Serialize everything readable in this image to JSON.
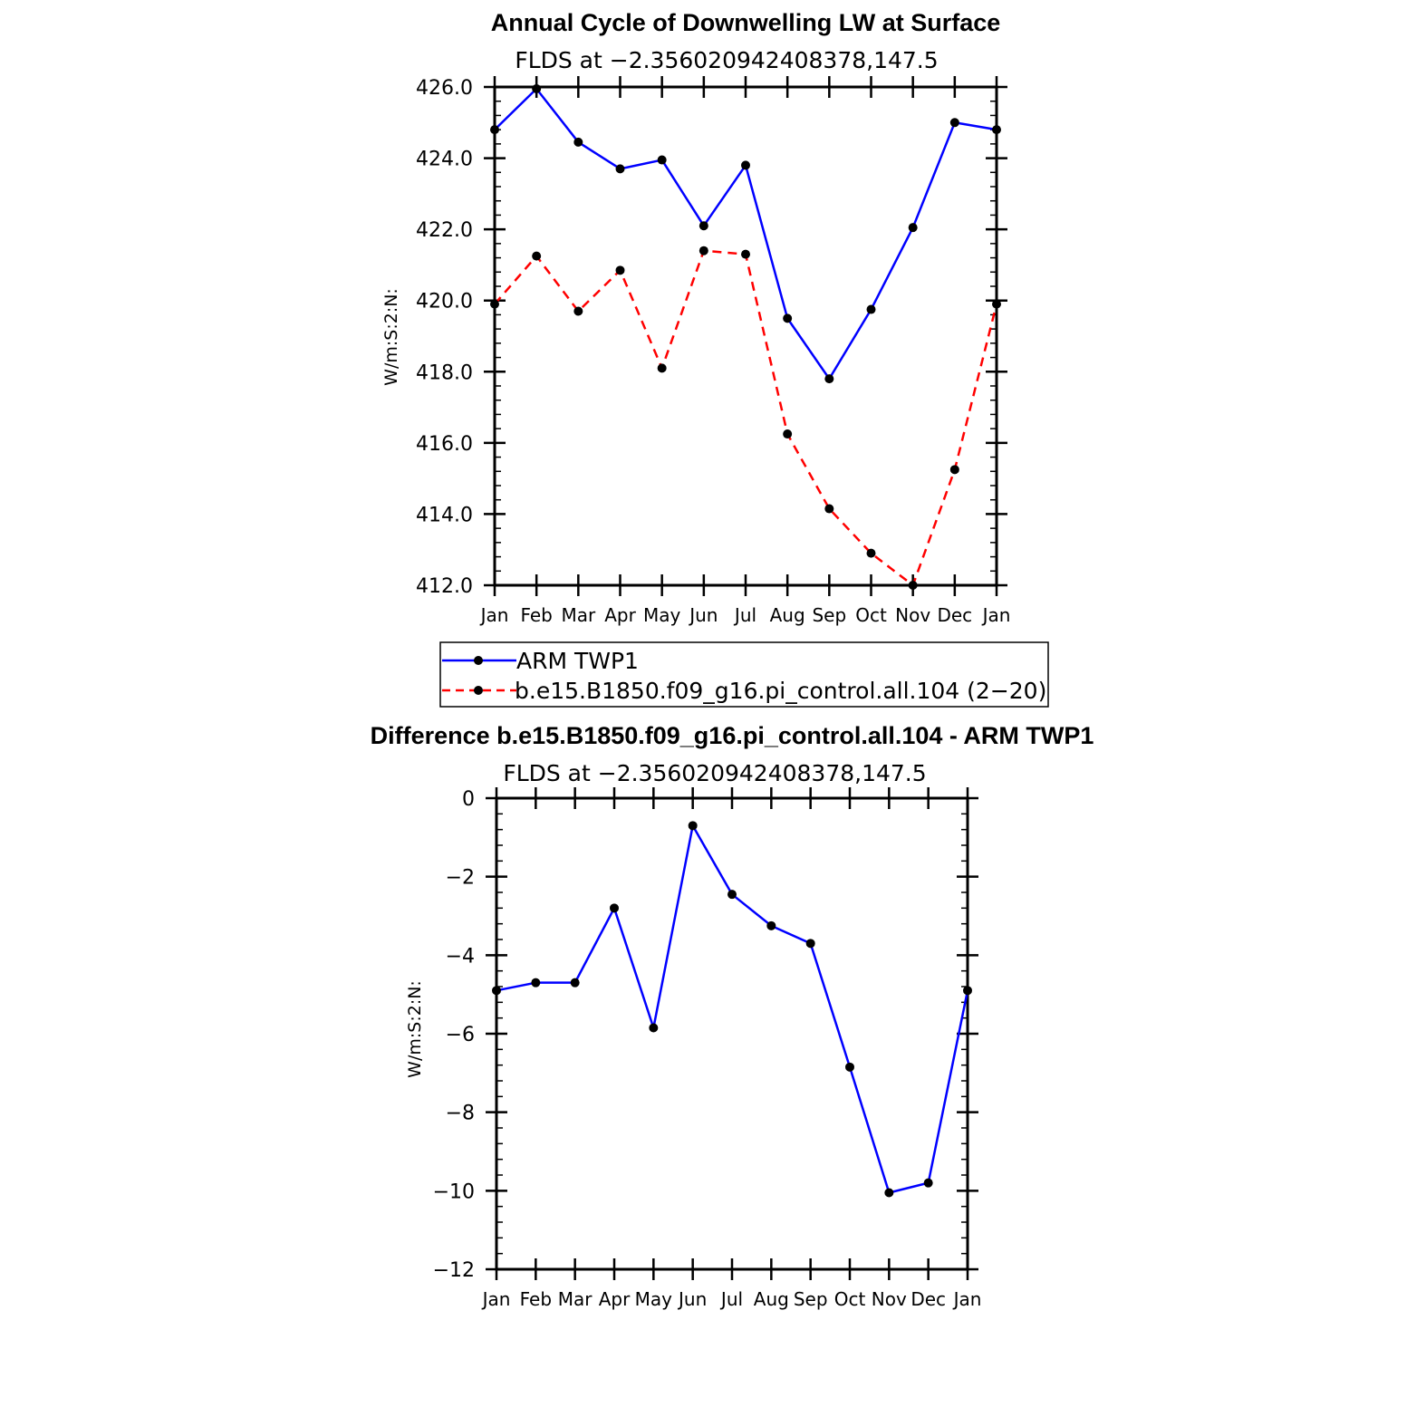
{
  "chart_data": [
    {
      "type": "line",
      "title": "Annual Cycle of Downwelling LW at Surface",
      "subtitle": "FLDS at −2.356020942408378,147.5",
      "ylabel": "W/m:S:2:N:",
      "ylim": [
        412,
        426
      ],
      "yticks": [
        "412.0",
        "414.0",
        "416.0",
        "418.0",
        "420.0",
        "422.0",
        "424.0",
        "426.0"
      ],
      "ytick_values": [
        412,
        414,
        416,
        418,
        420,
        422,
        424,
        426
      ],
      "categories": [
        "Jan",
        "Feb",
        "Mar",
        "Apr",
        "May",
        "Jun",
        "Jul",
        "Aug",
        "Sep",
        "Oct",
        "Nov",
        "Dec",
        "Jan"
      ],
      "series": [
        {
          "name": "ARM TWP1",
          "color": "#0000ff",
          "dash": "solid",
          "values": [
            424.8,
            425.95,
            424.45,
            423.7,
            423.95,
            422.1,
            423.8,
            419.5,
            417.8,
            419.75,
            422.05,
            425.0,
            424.8
          ]
        },
        {
          "name": "b.e15.B1850.f09_g16.pi_control.all.104 (2−20)",
          "color": "#ff0000",
          "dash": "dashed",
          "values": [
            419.9,
            421.25,
            419.7,
            420.85,
            418.1,
            421.4,
            421.3,
            416.25,
            414.15,
            412.9,
            412.0,
            415.25,
            419.9
          ]
        }
      ],
      "legend": "bottom"
    },
    {
      "type": "line",
      "title": "Difference b.e15.B1850.f09_g16.pi_control.all.104 - ARM TWP1",
      "subtitle": "FLDS at −2.356020942408378,147.5",
      "ylabel": "W/m:S:2:N:",
      "ylim": [
        -12,
        0
      ],
      "yticks": [
        "−12",
        "−10",
        "−8",
        "−6",
        "−4",
        "−2",
        "0"
      ],
      "ytick_values": [
        -12,
        -10,
        -8,
        -6,
        -4,
        -2,
        0
      ],
      "categories": [
        "Jan",
        "Feb",
        "Mar",
        "Apr",
        "May",
        "Jun",
        "Jul",
        "Aug",
        "Sep",
        "Oct",
        "Nov",
        "Dec",
        "Jan"
      ],
      "series": [
        {
          "name": "Difference",
          "color": "#0000ff",
          "dash": "solid",
          "values": [
            -4.9,
            -4.7,
            -4.7,
            -2.8,
            -5.85,
            -0.7,
            -2.45,
            -3.25,
            -3.7,
            -6.85,
            -10.05,
            -9.8,
            -4.9
          ]
        }
      ]
    }
  ],
  "marker_color": "#000000"
}
